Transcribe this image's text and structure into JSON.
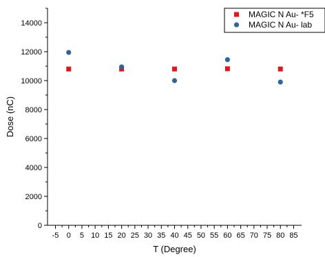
{
  "chart_data": {
    "type": "scatter",
    "title": "",
    "xlabel": "T (Degree)",
    "ylabel": "Dose (nC)",
    "xlim": [
      -8,
      88
    ],
    "ylim": [
      0,
      15000
    ],
    "xticks": [
      -5,
      0,
      5,
      10,
      15,
      20,
      25,
      30,
      35,
      40,
      45,
      50,
      55,
      60,
      65,
      70,
      75,
      80,
      85
    ],
    "yticks": [
      0,
      2000,
      4000,
      6000,
      8000,
      10000,
      12000,
      14000
    ],
    "grid": false,
    "legend_position": "top-right",
    "series": [
      {
        "name": "MAGIC N Au- *F5",
        "marker": "square",
        "color": "#e8141b",
        "x": [
          0,
          20,
          40,
          60,
          80
        ],
        "y": [
          10800,
          10800,
          10800,
          10820,
          10800
        ]
      },
      {
        "name": "MAGIC N Au- lab",
        "marker": "circle",
        "color": "#2e6496",
        "x": [
          0,
          20,
          40,
          60,
          80
        ],
        "y": [
          11950,
          10950,
          10000,
          11450,
          9900
        ]
      }
    ]
  }
}
